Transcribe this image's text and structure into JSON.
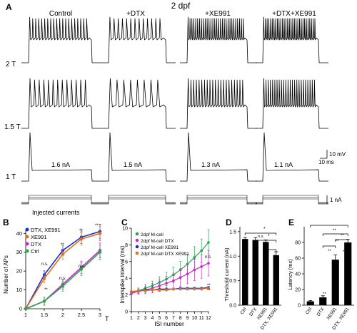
{
  "figure_title": "2 dpf",
  "panel_a": {
    "label": "A",
    "conditions": [
      "Control",
      "+DTX",
      "+XE991",
      "+DTX+XE991"
    ],
    "rows": [
      "2 T",
      "1.5 T",
      "1 T"
    ],
    "threshold_currents": [
      "1.6 nA",
      "1.5 nA",
      "1.3 nA",
      "1.1 nA"
    ],
    "scale_voltage": "10 mV",
    "scale_time": "10 ms",
    "scale_current": "1 nA",
    "injected_label": "Injected currents"
  },
  "panel_b": {
    "label": "B",
    "ylabel": "Number of APs",
    "xlabel": "T",
    "legend": [
      "DTX, XE991",
      "XE991",
      "DTX",
      "Ctrl"
    ],
    "annotations": [
      "n.s.",
      "**",
      "**",
      "**",
      "n.s.",
      "n.s.",
      "**"
    ]
  },
  "panel_c": {
    "label": "C",
    "ylabel": "Interspike interval (ms)",
    "xlabel": "ISI number",
    "legend": [
      "2dpf M-cell",
      "2dpf M-cell DTX",
      "2dpf M-cell XE991",
      "2dpf M-cell DTX XE991"
    ],
    "annotations": [
      "n.s.",
      "**",
      "**"
    ]
  },
  "panel_d": {
    "label": "D",
    "ylabel": "Threshold current (nA)",
    "annotations": [
      "n.s.",
      "n.s.",
      "n.s.",
      "*",
      "*",
      "*"
    ]
  },
  "panel_e": {
    "label": "E",
    "ylabel": "Latency (ms)",
    "annotations": [
      "**",
      "**",
      "**",
      "**",
      "**",
      "**",
      "**"
    ]
  },
  "chart_data": [
    {
      "panel": "B",
      "type": "line",
      "x": [
        1,
        1.5,
        2,
        2.5,
        3
      ],
      "xticks": [
        "1",
        "1.5",
        "2",
        "2.5",
        "3"
      ],
      "yticks": [
        "0",
        "10",
        "20",
        "30",
        "40"
      ],
      "ylim": [
        0,
        42
      ],
      "xlabel": "T",
      "ylabel": "Number of APs",
      "series": [
        {
          "name": "DTX, XE991",
          "color": "#1a2fd0",
          "values": [
            0,
            18,
            31,
            38,
            41
          ]
        },
        {
          "name": "XE991",
          "color": "#e0711a",
          "values": [
            0,
            16,
            29,
            37,
            40
          ]
        },
        {
          "name": "DTX",
          "color": "#c829c8",
          "values": [
            0,
            4,
            13,
            22,
            31
          ]
        },
        {
          "name": "Ctrl",
          "color": "#27a64a",
          "values": [
            0,
            4,
            12,
            21,
            30
          ]
        }
      ]
    },
    {
      "panel": "C",
      "type": "line",
      "x": [
        1,
        2,
        3,
        4,
        5,
        6,
        7,
        8,
        9,
        10,
        11,
        12
      ],
      "xticks": [
        "1",
        "2",
        "3",
        "4",
        "5",
        "6",
        "7",
        "8",
        "9",
        "10",
        "11",
        "12"
      ],
      "yticks": [
        "0",
        "2",
        "4",
        "6",
        "8",
        "10"
      ],
      "ylim": [
        0,
        10
      ],
      "xlabel": "ISI number",
      "ylabel": "Interspike interval (ms)",
      "series": [
        {
          "name": "2dpf M-cell",
          "color": "#27a64a",
          "values": [
            2.3,
            2.5,
            2.8,
            3.1,
            3.5,
            3.9,
            4.4,
            5.0,
            5.7,
            6.5,
            7.3,
            8.3
          ]
        },
        {
          "name": "2dpf M-cell DTX",
          "color": "#c829c8",
          "values": [
            2.2,
            2.4,
            2.6,
            2.8,
            3.1,
            3.4,
            3.7,
            4.1,
            4.5,
            5.0,
            5.4,
            5.8
          ]
        },
        {
          "name": "2dpf M-cell XE991",
          "color": "#1a2fd0",
          "values": [
            2.4,
            2.5,
            2.6,
            2.6,
            2.7,
            2.7,
            2.7,
            2.8,
            2.8,
            2.8,
            2.8,
            2.9
          ]
        },
        {
          "name": "2dpf M-cell DTX XE991",
          "color": "#e0711a",
          "values": [
            2.4,
            2.5,
            2.5,
            2.6,
            2.6,
            2.6,
            2.7,
            2.7,
            2.7,
            2.7,
            2.7,
            2.8
          ]
        }
      ]
    },
    {
      "panel": "D",
      "type": "bar",
      "categories": [
        "Ctrl",
        "DTX",
        "XE991",
        "DTX, XE991"
      ],
      "values": [
        1.35,
        1.33,
        1.29,
        1.02
      ],
      "errors": [
        0.03,
        0.05,
        0.04,
        0.07
      ],
      "yticks": [
        "0.0",
        "0.5",
        "1.0",
        "1.5"
      ],
      "ylim": [
        0,
        1.6
      ],
      "ylabel": "Threshold current (nA)"
    },
    {
      "panel": "E",
      "type": "bar",
      "categories": [
        "Ctrl",
        "DTX",
        "XE991",
        "DTX, XE991"
      ],
      "values": [
        5,
        10,
        58,
        80
      ],
      "errors": [
        1,
        2,
        6,
        4
      ],
      "yticks": [
        "0",
        "20",
        "40",
        "60",
        "80"
      ],
      "ylim": [
        0,
        100
      ],
      "ylabel": "Latency (ms)"
    }
  ]
}
